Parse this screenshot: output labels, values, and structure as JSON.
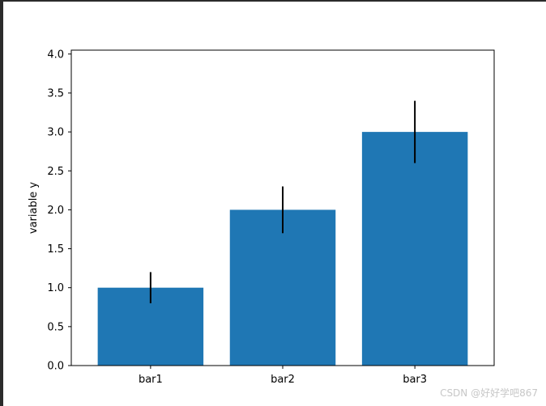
{
  "chart_data": {
    "type": "bar",
    "categories": [
      "bar1",
      "bar2",
      "bar3"
    ],
    "values": [
      1,
      2,
      3
    ],
    "errors": [
      0.2,
      0.3,
      0.4
    ],
    "title": "",
    "xlabel": "",
    "ylabel": "variable y",
    "ylim": [
      0,
      4.05
    ],
    "yticks": [
      0.0,
      0.5,
      1.0,
      1.5,
      2.0,
      2.5,
      3.0,
      3.5,
      4.0
    ],
    "ytick_labels": [
      "0.0",
      "0.5",
      "1.0",
      "1.5",
      "2.0",
      "2.5",
      "3.0",
      "3.5",
      "4.0"
    ],
    "grid": false,
    "bar_color": "#1f77b4",
    "error_color": "#000000"
  },
  "watermark": "CSDN @好好学吧867"
}
